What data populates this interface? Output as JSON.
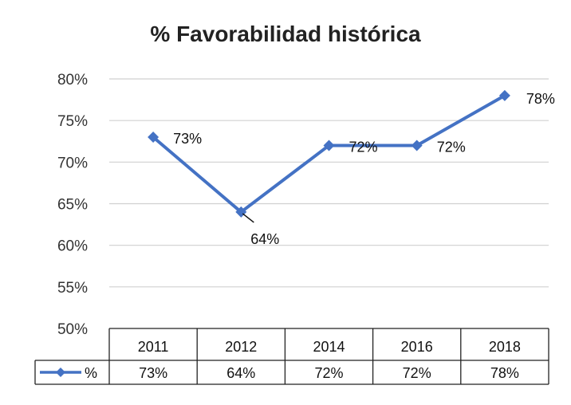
{
  "chart_data": {
    "type": "line",
    "title": "% Favorabilidad histórica",
    "xlabel": "",
    "ylabel": "",
    "categories": [
      "2011",
      "2012",
      "2014",
      "2016",
      "2018"
    ],
    "series": [
      {
        "name": "%",
        "values": [
          73,
          64,
          72,
          72,
          78
        ],
        "data_labels": [
          "73%",
          "64%",
          "72%",
          "72%",
          "78%"
        ],
        "color": "#4472C4",
        "marker": "diamond"
      }
    ],
    "ylim": [
      50,
      80
    ],
    "yticks": [
      50,
      55,
      60,
      65,
      70,
      75,
      80
    ],
    "ytick_labels": [
      "50%",
      "55%",
      "60%",
      "65%",
      "70%",
      "75%",
      "80%"
    ],
    "grid": true,
    "legend": "data-table",
    "data_table": {
      "header": [
        "2011",
        "2012",
        "2014",
        "2016",
        "2018"
      ],
      "rows": [
        {
          "label": "%",
          "values": [
            "73%",
            "64%",
            "72%",
            "72%",
            "78%"
          ]
        }
      ]
    }
  }
}
